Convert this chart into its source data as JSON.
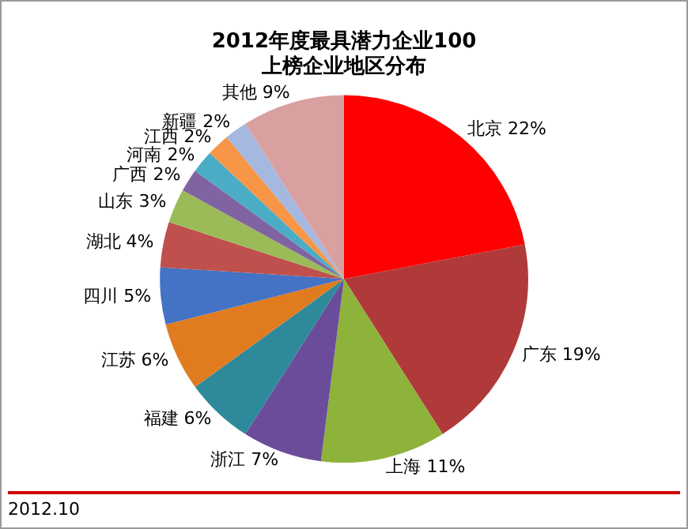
{
  "chart_data": {
    "type": "pie",
    "title": [
      "2012年度最具潜力企业100",
      "上榜企业地区分布"
    ],
    "categories": [
      "北京",
      "广东",
      "上海",
      "浙江",
      "福建",
      "江苏",
      "四川",
      "湖北",
      "山东",
      "广西",
      "河南",
      "江西",
      "新疆",
      "其他"
    ],
    "values": [
      22,
      19,
      11,
      7,
      6,
      6,
      5,
      4,
      3,
      2,
      2,
      2,
      2,
      9
    ],
    "value_labels": [
      "22%",
      "19%",
      "11%",
      "7%",
      "6%",
      "6%",
      "5%",
      "4%",
      "3%",
      "2%",
      "2%",
      "2%",
      "2%",
      "9%"
    ],
    "colors": [
      "#ff0000",
      "#b03a3a",
      "#8db33a",
      "#6b4c9a",
      "#2e8a9a",
      "#e07b20",
      "#4472c4",
      "#c0504d",
      "#9bbb59",
      "#8064a2",
      "#4bacc6",
      "#f79646",
      "#a5b8e0",
      "#d9a0a0"
    ],
    "legend": false,
    "annotations": [
      "2012.10"
    ]
  }
}
